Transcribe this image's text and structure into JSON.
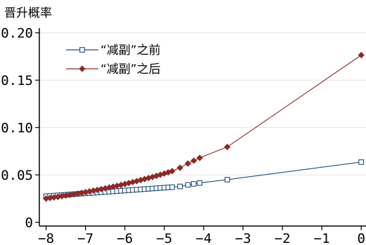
{
  "chart_data": {
    "type": "line",
    "ylabel": "晋升概率",
    "xlabel": "",
    "xlim": [
      -8.1,
      0.05
    ],
    "ylim": [
      -0.004,
      0.205
    ],
    "xticks": [
      -8,
      -7,
      -6,
      -5,
      -4,
      -3,
      -2,
      -1,
      0
    ],
    "xtick_labels": [
      "−8",
      "−7",
      "−6",
      "−5",
      "−4",
      "−3",
      "−2",
      "−1",
      "0"
    ],
    "yticks": [
      0,
      0.05,
      0.1,
      0.15,
      0.2
    ],
    "ytick_labels": [
      "0",
      "0.05",
      "0.10",
      "0.15",
      "0.20"
    ],
    "grid": "horizontal",
    "legend_position": "top-left",
    "series": [
      {
        "name": "“减副”之前",
        "color": "#1f4e79",
        "marker": "hollow-square",
        "x": [
          -8.0,
          -7.9,
          -7.8,
          -7.7,
          -7.6,
          -7.5,
          -7.4,
          -7.3,
          -7.2,
          -7.1,
          -7.0,
          -6.9,
          -6.8,
          -6.7,
          -6.6,
          -6.5,
          -6.4,
          -6.3,
          -6.2,
          -6.1,
          -6.0,
          -5.9,
          -5.8,
          -5.7,
          -5.6,
          -5.5,
          -5.4,
          -5.3,
          -5.2,
          -5.1,
          -5.0,
          -4.9,
          -4.8,
          -4.6,
          -4.4,
          -4.25,
          -4.1,
          -3.4,
          0.0
        ],
        "values": [
          0.0275,
          0.0278,
          0.0281,
          0.0284,
          0.0287,
          0.029,
          0.0293,
          0.0296,
          0.0299,
          0.0302,
          0.0305,
          0.0308,
          0.0311,
          0.0314,
          0.0317,
          0.032,
          0.0323,
          0.0326,
          0.0329,
          0.0332,
          0.0335,
          0.0338,
          0.0341,
          0.0344,
          0.0347,
          0.035,
          0.0353,
          0.0356,
          0.0359,
          0.0362,
          0.0365,
          0.0368,
          0.0371,
          0.0378,
          0.0395,
          0.0405,
          0.0415,
          0.045,
          0.0635
        ]
      },
      {
        "name": "“减副”之后",
        "color": "#8b2a2a",
        "marker": "filled-diamond",
        "x": [
          -8.0,
          -7.9,
          -7.8,
          -7.7,
          -7.6,
          -7.5,
          -7.4,
          -7.3,
          -7.2,
          -7.1,
          -7.0,
          -6.9,
          -6.8,
          -6.7,
          -6.6,
          -6.5,
          -6.4,
          -6.3,
          -6.2,
          -6.1,
          -6.0,
          -5.9,
          -5.8,
          -5.7,
          -5.6,
          -5.5,
          -5.4,
          -5.3,
          -5.2,
          -5.1,
          -5.0,
          -4.9,
          -4.8,
          -4.6,
          -4.4,
          -4.25,
          -4.1,
          -3.4,
          0.0
        ],
        "values": [
          0.025,
          0.0256,
          0.0262,
          0.0268,
          0.0275,
          0.0282,
          0.0289,
          0.0296,
          0.0303,
          0.031,
          0.0318,
          0.0326,
          0.0334,
          0.0342,
          0.035,
          0.0358,
          0.0367,
          0.0376,
          0.0385,
          0.0394,
          0.0404,
          0.0414,
          0.0424,
          0.0434,
          0.0445,
          0.0456,
          0.0467,
          0.0478,
          0.049,
          0.0502,
          0.0514,
          0.0527,
          0.054,
          0.0575,
          0.062,
          0.065,
          0.068,
          0.0795,
          0.1765
        ]
      }
    ]
  }
}
